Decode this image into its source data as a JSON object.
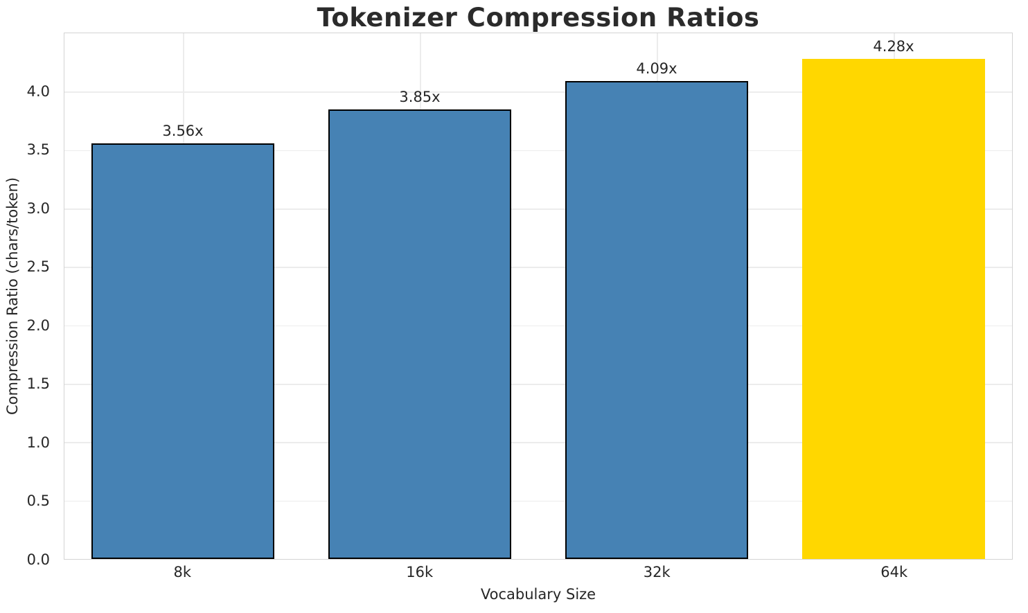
{
  "chart_data": {
    "type": "bar",
    "title": "Tokenizer Compression Ratios",
    "xlabel": "Vocabulary Size",
    "ylabel": "Compression Ratio (chars/token)",
    "categories": [
      "8k",
      "16k",
      "32k",
      "64k"
    ],
    "values": [
      3.56,
      3.85,
      4.09,
      4.28
    ],
    "bar_labels": [
      "3.56x",
      "3.85x",
      "4.09x",
      "4.28x"
    ],
    "ylim": [
      0,
      4.5
    ],
    "yticks": [
      0,
      0.5,
      1.0,
      1.5,
      2.0,
      2.5,
      3.0,
      3.5,
      4.0
    ],
    "ytick_labels": [
      "0.0",
      "0.5",
      "1.0",
      "1.5",
      "2.0",
      "2.5",
      "3.0",
      "3.5",
      "4.0"
    ],
    "grid": true,
    "legend": null,
    "bar_width_fraction": 0.772,
    "colors": {
      "bars": [
        "#4682B4",
        "#4682B4",
        "#4682B4",
        "#FFD700"
      ],
      "bar_edges": [
        "#000000",
        "#000000",
        "#000000",
        "none"
      ],
      "default_bar": "#4682B4",
      "highlight_bar": "#FFD700",
      "grid": "#ececec",
      "spine": "#d3d3d3",
      "text": "#262626",
      "title_text": "#2b2b2b",
      "background": "#ffffff"
    }
  }
}
